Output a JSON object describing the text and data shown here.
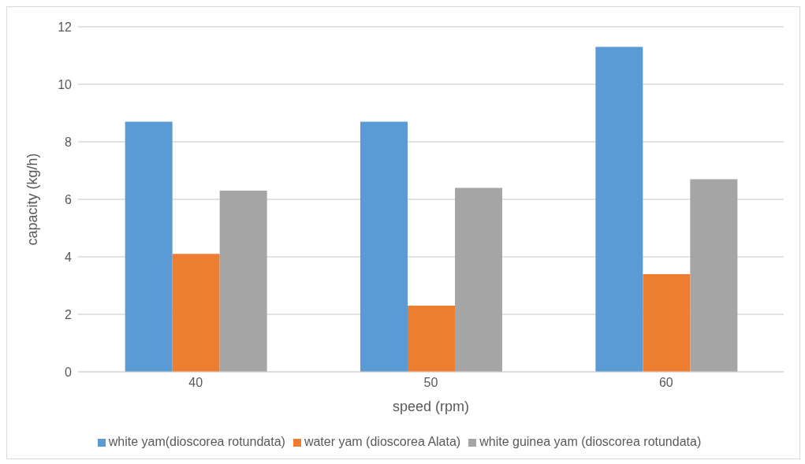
{
  "chart_data": {
    "type": "bar",
    "xlabel": "speed (rpm)",
    "ylabel": "capacity (kg/h)",
    "categories": [
      "40",
      "50",
      "60"
    ],
    "series": [
      {
        "name": "white yam(dioscorea rotundata)",
        "color": "#5b9bd5",
        "values": [
          8.7,
          8.7,
          11.3
        ]
      },
      {
        "name": "water yam (dioscorea Alata)",
        "color": "#ed7d31",
        "values": [
          4.1,
          2.3,
          3.4
        ]
      },
      {
        "name": "white guinea yam (dioscorea rotundata)",
        "color": "#a5a5a5",
        "values": [
          6.3,
          6.4,
          6.7
        ]
      }
    ],
    "ylim": [
      0,
      12
    ],
    "yticks": [
      0,
      2,
      4,
      6,
      8,
      10,
      12
    ],
    "grid": "y",
    "legend": "bottom"
  }
}
